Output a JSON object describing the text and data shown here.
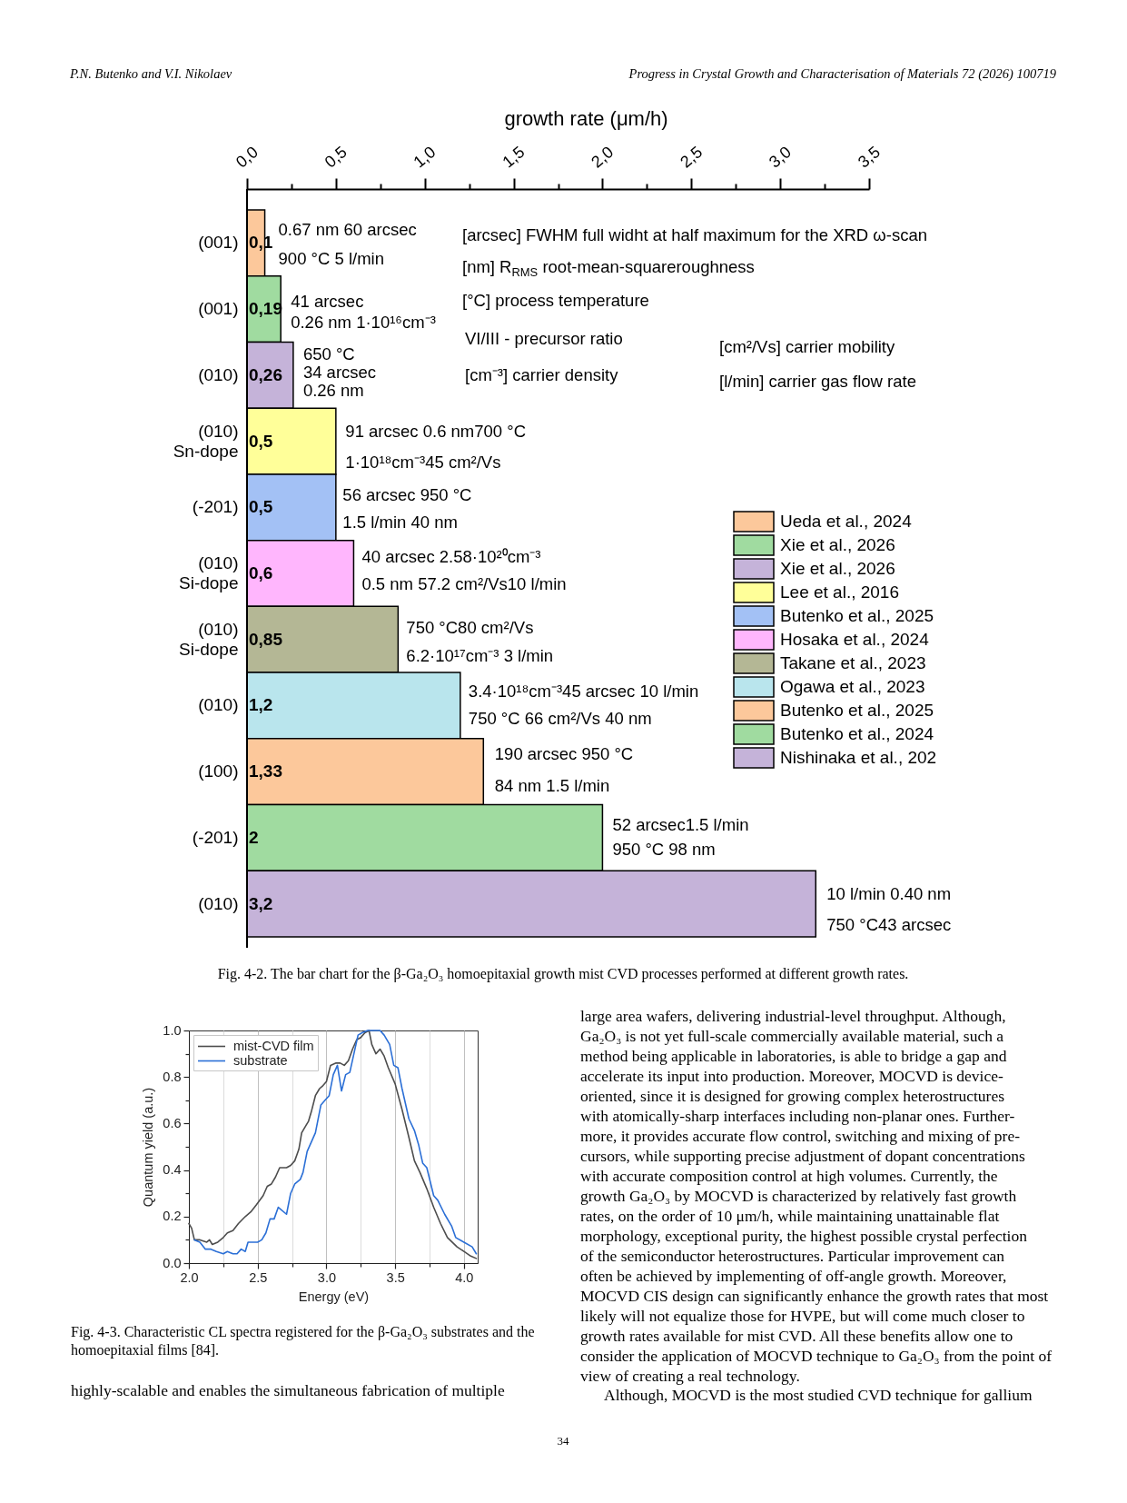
{
  "chart_data": [
    {
      "type": "bar",
      "orientation": "horizontal",
      "xlabel": "growth rate (μm/h)",
      "categories": [
        "(001)",
        "(001)",
        "(010)",
        "(010)\nSn-dope",
        "(-201)",
        "(010)\nSi-dope",
        "(010)\nSi-dope",
        "(010)",
        "(100)",
        "(-201)",
        "(010)"
      ],
      "series": [
        {
          "name": "Ueda et al., 2024",
          "color": "#fcc89b",
          "values": [
            0.1,
            null,
            null,
            null,
            null,
            null,
            null,
            null,
            null,
            null,
            null
          ],
          "value_labels": [
            "0,1",
            null,
            null,
            null,
            null,
            null,
            null,
            null,
            null,
            null,
            null
          ]
        },
        {
          "name": "Xie et al., 2026",
          "color": "#a0dba0",
          "values": [
            null,
            0.19,
            null,
            null,
            null,
            null,
            null,
            null,
            null,
            null,
            null
          ],
          "value_labels": [
            null,
            "0,19",
            null,
            null,
            null,
            null,
            null,
            null,
            null,
            null,
            null
          ]
        },
        {
          "name": "Xie et al., 2026",
          "color": "#c5b3d9",
          "values": [
            null,
            null,
            0.26,
            null,
            null,
            null,
            null,
            null,
            null,
            null,
            null
          ],
          "value_labels": [
            null,
            null,
            "0,26",
            null,
            null,
            null,
            null,
            null,
            null,
            null,
            null
          ]
        },
        {
          "name": "Lee et al., 2016",
          "color": "#ffff99",
          "values": [
            null,
            null,
            null,
            0.5,
            null,
            null,
            null,
            null,
            null,
            null,
            null
          ],
          "value_labels": [
            null,
            null,
            null,
            "0,5",
            null,
            null,
            null,
            null,
            null,
            null,
            null
          ]
        },
        {
          "name": "Butenko et al., 2025",
          "color": "#a3c1f5",
          "values": [
            null,
            null,
            null,
            null,
            0.5,
            null,
            null,
            null,
            null,
            null,
            null
          ],
          "value_labels": [
            null,
            null,
            null,
            null,
            "0,5",
            null,
            null,
            null,
            null,
            null,
            null
          ]
        },
        {
          "name": "Hosaka et al., 2024",
          "color": "#ffb6fd",
          "values": [
            null,
            null,
            null,
            null,
            null,
            0.6,
            null,
            null,
            null,
            null,
            null
          ],
          "value_labels": [
            null,
            null,
            null,
            null,
            null,
            "0,6",
            null,
            null,
            null,
            null,
            null
          ]
        },
        {
          "name": "Takane et al., 2023",
          "color": "#b4b795",
          "values": [
            null,
            null,
            null,
            null,
            null,
            null,
            0.85,
            null,
            null,
            null,
            null
          ],
          "value_labels": [
            null,
            null,
            null,
            null,
            null,
            null,
            "0,85",
            null,
            null,
            null,
            null
          ]
        },
        {
          "name": "Ogawa et al., 2023",
          "color": "#b9e5ed",
          "values": [
            null,
            null,
            null,
            null,
            null,
            null,
            null,
            1.2,
            null,
            null,
            null
          ],
          "value_labels": [
            null,
            null,
            null,
            null,
            null,
            null,
            null,
            "1,2",
            null,
            null,
            null
          ]
        },
        {
          "name": "Butenko et al., 2025",
          "color": "#fcc89b",
          "values": [
            null,
            null,
            null,
            null,
            null,
            null,
            null,
            null,
            1.33,
            null,
            null
          ],
          "value_labels": [
            null,
            null,
            null,
            null,
            null,
            null,
            null,
            null,
            "1,33",
            null,
            null
          ]
        },
        {
          "name": "Butenko et al., 2024",
          "color": "#a0dba0",
          "values": [
            null,
            null,
            null,
            null,
            null,
            null,
            null,
            null,
            null,
            2,
            null
          ],
          "value_labels": [
            null,
            null,
            null,
            null,
            null,
            null,
            null,
            null,
            null,
            "2",
            null
          ]
        },
        {
          "name": "Nishinaka et al., 202",
          "color": "#c5b3d9",
          "values": [
            null,
            null,
            null,
            null,
            null,
            null,
            null,
            null,
            null,
            null,
            3.2
          ],
          "value_labels": [
            null,
            null,
            null,
            null,
            null,
            null,
            null,
            null,
            null,
            null,
            "3,2"
          ]
        }
      ],
      "xlim": [
        0,
        3.5
      ],
      "xticks": [
        {
          "value": 0,
          "label": "0,0"
        },
        {
          "value": 0.25,
          "label": null
        },
        {
          "value": 0.5,
          "label": "0,5"
        },
        {
          "value": 0.75,
          "label": null
        },
        {
          "value": 1,
          "label": "1,0"
        },
        {
          "value": 1.25,
          "label": null
        },
        {
          "value": 1.5,
          "label": "1,5"
        },
        {
          "value": 1.75,
          "label": null
        },
        {
          "value": 2,
          "label": "2,0"
        },
        {
          "value": 2.25,
          "label": null
        },
        {
          "value": 2.5,
          "label": "2,5"
        },
        {
          "value": 2.75,
          "label": null
        },
        {
          "value": 3,
          "label": "3,0"
        },
        {
          "value": 3.25,
          "label": null
        },
        {
          "value": 3.5,
          "label": "3,5"
        }
      ],
      "legend": "right",
      "annotations": [
        "P.N. Butenko and V.I. Nikolaev",
        "Progress in Crystal Growth and Characterisation of Materials 72 (2026) 100719",
        "0.67 nm 60 arcsec\n900 °C 5 l/min",
        "41 arcsec\n0.26 nm 1·10¹⁶cm⁻³",
        "650 °C\n34 arcsec\n0.26 nm",
        "91 arcsec 0.6 nm700 °C\n1·10¹⁸cm⁻³45 cm²/Vs",
        "56 arcsec 950 °C\n1.5 l/min 40 nm",
        "40 arcsec 2.58·10²⁰cm⁻³\n0.5 nm 57.2 cm²/Vs10 l/min",
        "750 °C80 cm²/Vs\n6.2·10¹⁷cm⁻³ 3 l/min",
        "3.4·10¹⁸cm⁻³45 arcsec 10 l/min\n750 °C 66 cm²/Vs 40 nm",
        "190 arcsec 950 °C\n84 nm 1.5 l/min",
        "52 arcsec1.5 l/min\n950 °C 98 nm",
        "10 l/min 0.40 nm\n750 °C43 arcsec",
        "[arcsec] FWHM full widht at half maximum for the XRD ω-scan",
        "[nm] R$_{RMS}$ root-mean-squareroughness",
        "[°C] process temperature",
        "VI/III - precursor ratio",
        "[cm⁻³] carrier density",
        "[cm²/Vs] carrier mobility",
        "[l/min] carrier gas flow rate",
        "Fig. 4-2. The bar chart for the β-Ga₂O₃ homoepitaxial growth mist CVD processes performed at different growth rates."
      ]
    },
    {
      "type": "line",
      "xlabel": "Energy (eV)",
      "ylabel": "Quantum yield (a.u.)",
      "xlim": [
        2.0,
        4.1
      ],
      "xticks": [
        {
          "value": 2.0,
          "label": "2.0"
        },
        {
          "value": 2.25,
          "label": null
        },
        2.5,
        {
          "value": 2.75,
          "label": null
        },
        {
          "value": 3.0,
          "label": "3.0"
        },
        {
          "value": 3.25,
          "label": null
        },
        3.5,
        {
          "value": 3.75,
          "label": null
        },
        {
          "value": 4.0,
          "label": "4.0"
        }
      ],
      "ylim": [
        0,
        1.0
      ],
      "yticks": [
        {
          "value": 0,
          "label": "0.0"
        },
        {
          "value": 0.1,
          "label": null
        },
        0.2,
        {
          "value": 0.3,
          "label": null
        },
        0.4,
        {
          "value": 0.5,
          "label": null
        },
        0.6,
        {
          "value": 0.7,
          "label": null
        },
        0.8,
        {
          "value": 0.9,
          "label": null
        },
        {
          "value": 1.0,
          "label": "1.0"
        }
      ],
      "grid": "x",
      "legend": "top left",
      "series": [
        {
          "name": "mist-CVD film",
          "color": "#4d4d4d",
          "x": [
            2.0,
            2.02,
            2.04,
            2.08,
            2.13,
            2.15,
            2.17,
            2.21,
            2.25,
            2.28,
            2.32,
            2.36,
            2.41,
            2.45,
            2.49,
            2.54,
            2.57,
            2.6,
            2.63,
            2.66,
            2.71,
            2.74,
            2.77,
            2.8,
            2.82,
            2.85,
            2.87,
            2.89,
            2.92,
            2.95,
            2.97,
            3.0,
            3.03,
            3.07,
            3.1,
            3.13,
            3.16,
            3.19,
            3.22,
            3.25,
            3.28,
            3.31,
            3.33,
            3.36,
            3.39,
            3.42,
            3.45,
            3.5,
            3.55,
            3.6,
            3.64,
            3.68,
            3.73,
            3.78,
            3.83,
            3.88,
            3.95,
            4.0,
            4.05,
            4.09
          ],
          "values": [
            0.17,
            0.15,
            0.1,
            0.1,
            0.09,
            0.1,
            0.08,
            0.09,
            0.11,
            0.13,
            0.14,
            0.17,
            0.2,
            0.22,
            0.25,
            0.29,
            0.33,
            0.34,
            0.37,
            0.41,
            0.41,
            0.42,
            0.44,
            0.49,
            0.56,
            0.59,
            0.61,
            0.65,
            0.72,
            0.75,
            0.76,
            0.78,
            0.85,
            0.86,
            0.86,
            0.85,
            0.87,
            0.92,
            0.96,
            0.97,
            0.99,
            1.0,
            0.94,
            0.9,
            0.92,
            0.89,
            0.84,
            0.77,
            0.66,
            0.54,
            0.44,
            0.39,
            0.32,
            0.24,
            0.17,
            0.11,
            0.07,
            0.05,
            0.03,
            0.02
          ]
        },
        {
          "name": "substrate",
          "color": "#2b6fd6",
          "x": [
            2.04,
            2.08,
            2.12,
            2.16,
            2.2,
            2.25,
            2.28,
            2.32,
            2.35,
            2.38,
            2.41,
            2.43,
            2.46,
            2.5,
            2.53,
            2.56,
            2.59,
            2.62,
            2.65,
            2.71,
            2.74,
            2.77,
            2.81,
            2.83,
            2.86,
            2.89,
            2.92,
            2.96,
            2.99,
            3.02,
            3.05,
            3.08,
            3.11,
            3.14,
            3.17,
            3.2,
            3.23,
            3.26,
            3.3,
            3.35,
            3.39,
            3.42,
            3.46,
            3.49,
            3.52,
            3.55,
            3.6,
            3.64,
            3.67,
            3.7,
            3.73,
            3.78,
            3.81,
            3.86,
            3.91,
            3.94,
            4.0,
            4.06,
            4.09
          ],
          "values": [
            0.1,
            0.09,
            0.06,
            0.06,
            0.05,
            0.04,
            0.05,
            0.04,
            0.04,
            0.06,
            0.05,
            0.09,
            0.09,
            0.09,
            0.1,
            0.13,
            0.19,
            0.19,
            0.24,
            0.21,
            0.3,
            0.34,
            0.36,
            0.39,
            0.48,
            0.52,
            0.56,
            0.68,
            0.7,
            0.72,
            0.81,
            0.85,
            0.74,
            0.81,
            0.82,
            0.9,
            0.98,
            0.99,
            1.0,
            1.0,
            1.0,
            0.98,
            0.94,
            0.85,
            0.84,
            0.75,
            0.62,
            0.57,
            0.51,
            0.43,
            0.41,
            0.29,
            0.27,
            0.21,
            0.16,
            0.11,
            0.09,
            0.07,
            0.04
          ]
        }
      ],
      "annotations": [
        "Fig. 4-3. Characteristic CL spectra registered for the β-Ga₂O₃ substrates and the\nhomoepitaxial films [84]."
      ]
    },
    {
      "type": "other",
      "annotations": [
        "large area wafers, delivering industrial-level throughput. Although,\nGa₂O₃ is not yet full-scale commercially available material, such a\nmethod being applicable in laboratories, is able to bridge a gap and\naccelerate its input into production. Moreover, MOCVD is device-\noriented, since it is designed for growing complex heterostructures\nwith atomically-sharp interfaces including non-planar ones. Further-\nmore, it provides accurate flow control, switching and mixing of pre-\ncursors, while supporting precise adjustment of dopant concentrations\nwith accurate composition control at high volumes. Currently, the\ngrowth Ga₂O₃ by MOCVD is characterized by relatively fast growth\nrates, on the order of 10 μm/h, while maintaining unattainable flat\nmorphology, exceptional purity, the highest possible crystal perfection\nof the semiconductor heterostructures. Particular improvement can\noften be achieved by implementing of off-angle growth. Moreover,\nMOCVD CIS design can significantly enhance the growth rates that most\nlikely will not equalize those for HVPE, but will come much closer to\ngrowth rates available for mist CVD. All these benefits allow one to\nconsider the application of MOCVD technique to Ga₂O₃ from the point of\nview of creating a real technology.",
        "Although, MOCVD is the most studied CVD technique for gallium",
        "highly-scalable and enables the simultaneous fabrication of multiple",
        "34"
      ]
    }
  ]
}
